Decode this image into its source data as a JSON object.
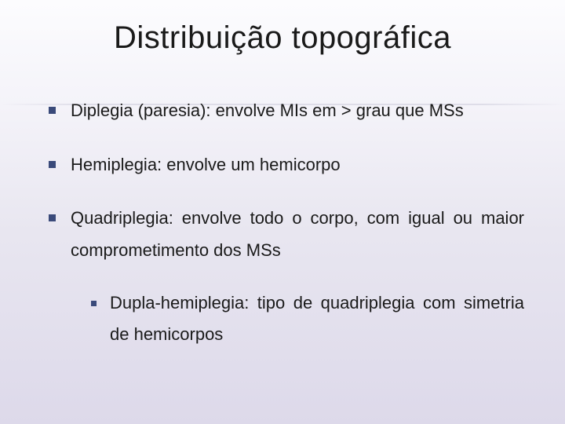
{
  "slide": {
    "title": "Distribuição topográfica",
    "background_gradient": [
      "#fcfcfe",
      "#f4f3f9",
      "#e8e6f0",
      "#ddd9ea"
    ],
    "bullet_color": "#3a4a7a",
    "text_color": "#1a1a1a",
    "title_fontsize": 40,
    "body_fontsize": 22,
    "line_height": 1.85,
    "items": [
      {
        "text": "Diplegia (paresia): envolve MIs em > grau que MSs"
      },
      {
        "text": "Hemiplegia: envolve um hemicorpo"
      },
      {
        "text": "Quadriplegia: envolve todo o corpo, com igual ou maior comprometimento dos MSs",
        "children": [
          {
            "text": "Dupla-hemiplegia: tipo de quadriplegia com simetria de hemicorpos"
          }
        ]
      }
    ]
  }
}
